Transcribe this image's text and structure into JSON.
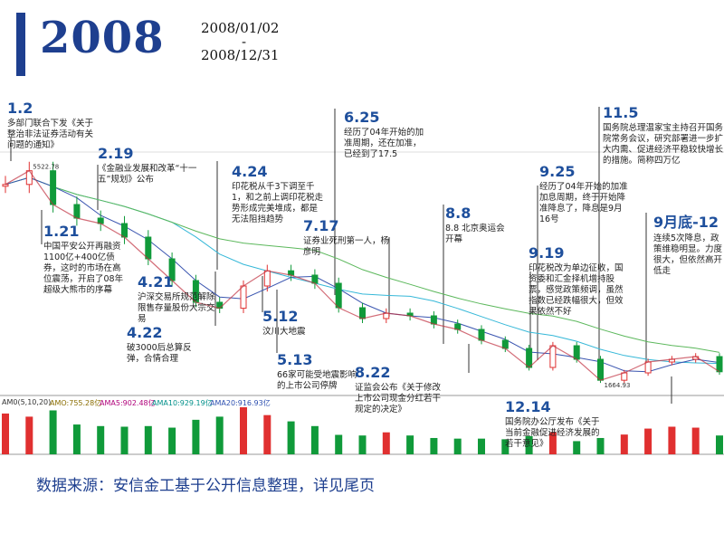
{
  "header": {
    "year": "2008",
    "date_start": "2008/01/02",
    "date_sep": "-",
    "date_end": "2008/12/31"
  },
  "source_note": "数据来源：安信金工基于公开信息整理，详见尾页",
  "price_labels": {
    "high": "5522.78",
    "low": "1664.93"
  },
  "volume_legend": {
    "am_main": "AM0(5,10,20)",
    "am_value": "AMO:755.28亿",
    "ama5": "AMA5:902.48亿",
    "ama10": "AMA10:929.19亿",
    "ama20": "AMA20:916.93亿"
  },
  "annotations": [
    {
      "id": "a0102",
      "date": "1.2",
      "text": "多部门联合下发《关于整治非法证券活动有关问题的通知》"
    },
    {
      "id": "a0219",
      "date": "2.19",
      "text": "《金融业发展和改革“十一五”规划》公布"
    },
    {
      "id": "a0121",
      "date": "1.21",
      "text": "中国平安公开再融资1100亿+400亿债券，这时的市场在高位震荡，开启了08年超级大熊市的序幕"
    },
    {
      "id": "a0421",
      "date": "4.21",
      "text": "沪深交易所规范解除限售存量股份大宗交易"
    },
    {
      "id": "a0422",
      "date": "4.22",
      "text": "破3000后总算反弹，合情合理"
    },
    {
      "id": "a0424",
      "date": "4.24",
      "text": "印花税从千3下调至千1，和之前上调印花税走势形成完美堆成，都是无法阻挡趋势"
    },
    {
      "id": "a0512",
      "date": "5.12",
      "text": "汶川大地震"
    },
    {
      "id": "a0513",
      "date": "5.13",
      "text": "66家可能受地震影响的上市公司停牌"
    },
    {
      "id": "a0625",
      "date": "6.25",
      "text": "经历了04年开始的加准周期，还在加准，已经到了17.5"
    },
    {
      "id": "a0717",
      "date": "7.17",
      "text": "证券业死刑第一人，杨彦明"
    },
    {
      "id": "a0808",
      "date": "8.8",
      "text": "8.8 北京奥运会开幕"
    },
    {
      "id": "a0822",
      "date": "8.22",
      "text": "证监会公布《关于修改上市公司现金分红若干规定的决定》"
    },
    {
      "id": "a0919",
      "date": "9.19",
      "text": "印花税改为单边征收，国资委和汇金择机增持股票，感觉政策频调，虽然指数已经跌幅很大，但效果依然不好"
    },
    {
      "id": "a0925",
      "date": "9.25",
      "text": "经历了04年开始的加准加息周期，终于开始降准降息了，降息是9月16号"
    },
    {
      "id": "a1105",
      "date": "11.5",
      "text": "国务院总理温家宝主持召开国务院常务会议，研究部署进一步扩大内需、促进经济平稳较快增长的措施。简称四万亿"
    },
    {
      "id": "a0930",
      "date": "9月底-12",
      "text": "连续5次降息，政策维稳明显。力度很大，但依然高开低走"
    },
    {
      "id": "a1214",
      "date": "12.14",
      "text": "国务院办公厅发布《关于当前金融促进经济发展的若干意见》"
    }
  ],
  "chart_data": {
    "type": "line",
    "title": "",
    "xlabel": "",
    "ylabel": "",
    "x": [
      "2008-01-02",
      "2008-01-14",
      "2008-01-21",
      "2008-02-04",
      "2008-02-19",
      "2008-03-03",
      "2008-03-17",
      "2008-04-01",
      "2008-04-18",
      "2008-04-22",
      "2008-04-24",
      "2008-05-06",
      "2008-05-12",
      "2008-05-26",
      "2008-06-10",
      "2008-06-25",
      "2008-07-08",
      "2008-07-17",
      "2008-08-01",
      "2008-08-08",
      "2008-08-22",
      "2008-09-05",
      "2008-09-19",
      "2008-09-25",
      "2008-10-10",
      "2008-10-28",
      "2008-11-05",
      "2008-11-18",
      "2008-12-01",
      "2008-12-14",
      "2008-12-31"
    ],
    "series": [
      {
        "values": [
          5270,
          5522,
          4900,
          4650,
          4550,
          4300,
          3900,
          3500,
          3100,
          2990,
          3400,
          3680,
          3600,
          3450,
          3000,
          2800,
          2900,
          2850,
          2700,
          2600,
          2400,
          2250,
          1900,
          2300,
          2050,
          1664,
          1800,
          2000,
          2050,
          2100,
          1820
        ]
      }
    ],
    "volume": [
      1300,
      1200,
      1400,
      950,
      900,
      880,
      900,
      850,
      1100,
      1200,
      1500,
      1250,
      1050,
      900,
      620,
      600,
      700,
      600,
      520,
      500,
      500,
      480,
      580,
      700,
      420,
      520,
      630,
      820,
      880,
      850,
      600
    ],
    "ylim": [
      1500,
      5800
    ],
    "grid": false
  }
}
